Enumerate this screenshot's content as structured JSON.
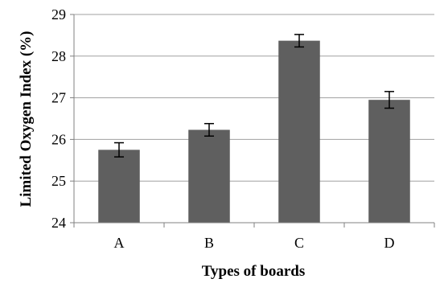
{
  "chart_data": {
    "type": "bar",
    "title": "",
    "xlabel": "Types of boards",
    "ylabel": "Limited Oxygen Index (%)",
    "ylim": [
      24,
      29
    ],
    "yticks": [
      24,
      25,
      26,
      27,
      28,
      29
    ],
    "grid": true,
    "categories": [
      "A",
      "B",
      "C",
      "D"
    ],
    "values": [
      25.75,
      26.23,
      28.37,
      26.95
    ],
    "error": [
      0.17,
      0.15,
      0.15,
      0.2
    ],
    "colors": {
      "bar": "#5f5f5f",
      "grid": "#a0a0a0",
      "axis": "#808080",
      "text": "#000000"
    }
  }
}
